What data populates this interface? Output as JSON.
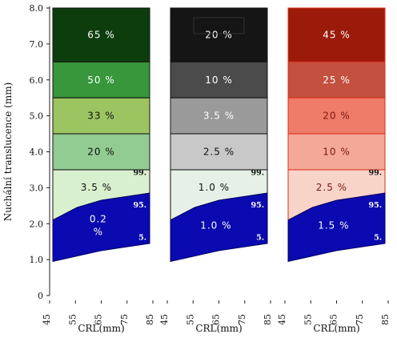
{
  "chart_data": {
    "type": "area",
    "ylabel": "Nuchální translucence (mm)",
    "y_ticks": [
      "0",
      "1.0",
      "2.0",
      "3.0",
      "4.0",
      "5.0",
      "6.0",
      "7.0",
      "8.0"
    ],
    "ylim": [
      0,
      8
    ],
    "xlim": [
      45,
      85
    ],
    "panels": [
      {
        "xlabel": "CRL(mm)",
        "x_ticks": [
          "45",
          "55",
          "65",
          "75",
          "85"
        ],
        "palette": "green",
        "bands": [
          {
            "from": 6.5,
            "to": 8.0,
            "label": "65 %",
            "color": "#0d3d0d",
            "text_color": "#ffffff"
          },
          {
            "from": 5.5,
            "to": 6.5,
            "label": "50 %",
            "color": "#38963b",
            "text_color": "#ffffff"
          },
          {
            "from": 4.5,
            "to": 5.5,
            "label": "33 %",
            "color": "#9cc562",
            "text_color": "#111111"
          },
          {
            "from": 3.5,
            "to": 4.5,
            "label": "20 %",
            "color": "#92cc92",
            "text_color": "#111111"
          },
          {
            "from": "p99",
            "to": 3.5,
            "label": "3.5 %",
            "color": "#d9f0cf",
            "text_color": "#111111"
          },
          {
            "from": "base",
            "to": "p95",
            "label": "0.2 %",
            "color": "#0a0ab0",
            "text_color": "#ffffff"
          }
        ],
        "percentile_labels": [
          "99.",
          "95.",
          "5."
        ]
      },
      {
        "xlabel": "CRL(mm)",
        "x_ticks": [
          "45",
          "55",
          "65",
          "75",
          "85"
        ],
        "palette": "grey",
        "bands": [
          {
            "from": 6.5,
            "to": 8.0,
            "label": "20 %",
            "color": "#151515",
            "text_color": "#ffffff"
          },
          {
            "from": 5.5,
            "to": 6.5,
            "label": "10 %",
            "color": "#4b4b4b",
            "text_color": "#ffffff"
          },
          {
            "from": 4.5,
            "to": 5.5,
            "label": "3.5 %",
            "color": "#9a9a9a",
            "text_color": "#ffffff"
          },
          {
            "from": 3.5,
            "to": 4.5,
            "label": "2.5 %",
            "color": "#c8c8c8",
            "text_color": "#111111"
          },
          {
            "from": "p99",
            "to": 3.5,
            "label": "1.0 %",
            "color": "#e6f0e6",
            "text_color": "#111111"
          },
          {
            "from": "base",
            "to": "p95",
            "label": "1.0 %",
            "color": "#0a0ab0",
            "text_color": "#ffffff"
          }
        ],
        "percentile_labels": [
          "99.",
          "95.",
          "5."
        ]
      },
      {
        "xlabel": "CRL(mm)",
        "x_ticks": [
          "45",
          "55",
          "65",
          "75",
          "85"
        ],
        "palette": "red",
        "bands": [
          {
            "from": 6.5,
            "to": 8.0,
            "label": "45 %",
            "color": "#9b1a0a",
            "text_color": "#ffffff"
          },
          {
            "from": 5.5,
            "to": 6.5,
            "label": "25 %",
            "color": "#c4503f",
            "text_color": "#ffffff"
          },
          {
            "from": 4.5,
            "to": 5.5,
            "label": "20 %",
            "color": "#ee7c68",
            "text_color": "#7a1a10"
          },
          {
            "from": 3.5,
            "to": 4.5,
            "label": "10 %",
            "color": "#f4a898",
            "text_color": "#7a1a10"
          },
          {
            "from": "p99",
            "to": 3.5,
            "label": "2.5 %",
            "color": "#f8d4c8",
            "text_color": "#7a1a10"
          },
          {
            "from": "base",
            "to": "p95",
            "label": "1.5 %",
            "color": "#0a0ab0",
            "text_color": "#ffffff"
          }
        ],
        "percentile_labels": [
          "99.",
          "95.",
          "5."
        ]
      }
    ],
    "percentile_curves": {
      "p95": {
        "x": [
          45,
          55,
          65,
          75,
          85
        ],
        "y": [
          2.1,
          2.45,
          2.65,
          2.75,
          2.85
        ]
      },
      "p5": {
        "x": [
          45,
          55,
          65,
          75,
          85
        ],
        "y": [
          0.95,
          1.1,
          1.25,
          1.35,
          1.45
        ]
      }
    }
  }
}
